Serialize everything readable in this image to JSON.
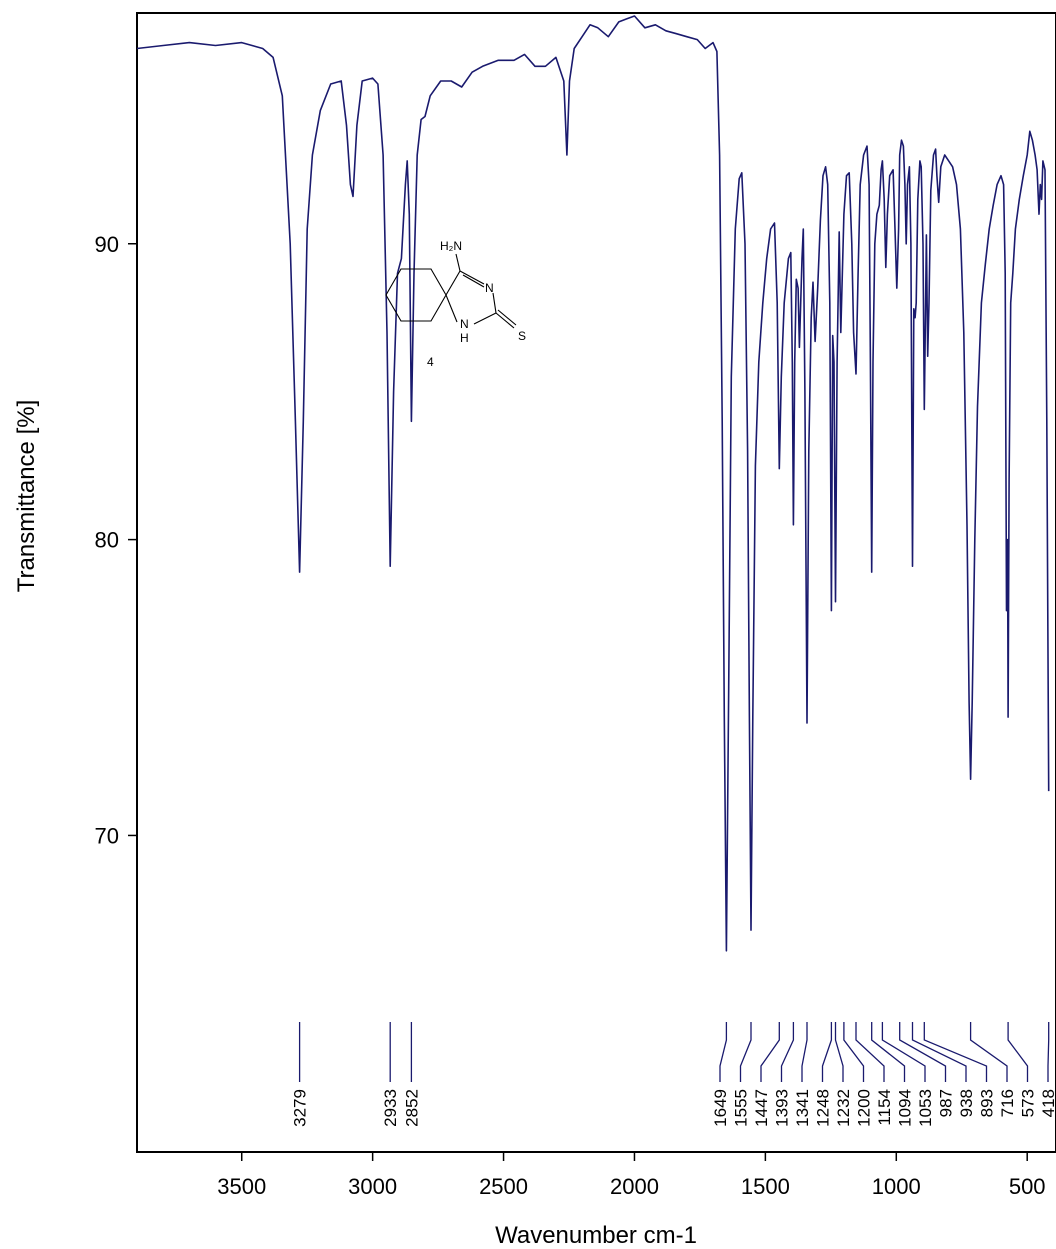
{
  "chart_data": {
    "type": "line",
    "xlabel": "Wavenumber cm-1",
    "ylabel": "Transmittance [%]",
    "xlim": [
      3900,
      390
    ],
    "ylim": [
      59.3,
      97.8
    ],
    "x_reversed": true,
    "x_ticks": [
      3500,
      3000,
      2500,
      2000,
      1500,
      1000,
      500
    ],
    "y_ticks": [
      70,
      80,
      90
    ],
    "grid": false,
    "series": [
      {
        "color": "#1a1a6e",
        "points": [
          [
            3900,
            96.6
          ],
          [
            3800,
            96.7
          ],
          [
            3700,
            96.8
          ],
          [
            3600,
            96.7
          ],
          [
            3500,
            96.8
          ],
          [
            3420,
            96.6
          ],
          [
            3380,
            96.3
          ],
          [
            3345,
            95.0
          ],
          [
            3315,
            90.0
          ],
          [
            3295,
            84.0
          ],
          [
            3279,
            78.9
          ],
          [
            3265,
            84.0
          ],
          [
            3250,
            90.5
          ],
          [
            3230,
            93.0
          ],
          [
            3200,
            94.5
          ],
          [
            3160,
            95.4
          ],
          [
            3120,
            95.5
          ],
          [
            3100,
            94.0
          ],
          [
            3085,
            92.0
          ],
          [
            3075,
            91.6
          ],
          [
            3060,
            94.0
          ],
          [
            3040,
            95.5
          ],
          [
            3000,
            95.6
          ],
          [
            2980,
            95.4
          ],
          [
            2960,
            93.0
          ],
          [
            2945,
            87.0
          ],
          [
            2933,
            79.1
          ],
          [
            2920,
            85.0
          ],
          [
            2905,
            89.0
          ],
          [
            2890,
            89.5
          ],
          [
            2875,
            92.0
          ],
          [
            2868,
            92.8
          ],
          [
            2860,
            91.0
          ],
          [
            2852,
            84.0
          ],
          [
            2842,
            89.0
          ],
          [
            2830,
            93.0
          ],
          [
            2815,
            94.2
          ],
          [
            2800,
            94.3
          ],
          [
            2780,
            95.0
          ],
          [
            2740,
            95.5
          ],
          [
            2700,
            95.5
          ],
          [
            2660,
            95.3
          ],
          [
            2620,
            95.8
          ],
          [
            2580,
            96.0
          ],
          [
            2520,
            96.2
          ],
          [
            2460,
            96.2
          ],
          [
            2420,
            96.4
          ],
          [
            2380,
            96.0
          ],
          [
            2340,
            96.0
          ],
          [
            2300,
            96.3
          ],
          [
            2270,
            95.5
          ],
          [
            2258,
            93.0
          ],
          [
            2248,
            95.5
          ],
          [
            2230,
            96.6
          ],
          [
            2200,
            97.0
          ],
          [
            2170,
            97.4
          ],
          [
            2140,
            97.3
          ],
          [
            2100,
            97.0
          ],
          [
            2060,
            97.5
          ],
          [
            2030,
            97.6
          ],
          [
            2000,
            97.7
          ],
          [
            1960,
            97.3
          ],
          [
            1920,
            97.4
          ],
          [
            1880,
            97.2
          ],
          [
            1840,
            97.1
          ],
          [
            1800,
            97.0
          ],
          [
            1760,
            96.9
          ],
          [
            1730,
            96.6
          ],
          [
            1700,
            96.8
          ],
          [
            1685,
            96.5
          ],
          [
            1675,
            93.0
          ],
          [
            1665,
            84.0
          ],
          [
            1657,
            74.0
          ],
          [
            1649,
            66.1
          ],
          [
            1640,
            75.0
          ],
          [
            1630,
            85.5
          ],
          [
            1615,
            90.5
          ],
          [
            1600,
            92.2
          ],
          [
            1590,
            92.4
          ],
          [
            1578,
            90.0
          ],
          [
            1568,
            83.0
          ],
          [
            1561,
            74.0
          ],
          [
            1555,
            66.8
          ],
          [
            1548,
            74.0
          ],
          [
            1538,
            82.5
          ],
          [
            1525,
            86.0
          ],
          [
            1510,
            88.0
          ],
          [
            1495,
            89.5
          ],
          [
            1480,
            90.5
          ],
          [
            1465,
            90.7
          ],
          [
            1455,
            88.0
          ],
          [
            1447,
            82.4
          ],
          [
            1439,
            85.5
          ],
          [
            1428,
            88.0
          ],
          [
            1412,
            89.5
          ],
          [
            1403,
            89.7
          ],
          [
            1397,
            86.0
          ],
          [
            1393,
            80.5
          ],
          [
            1388,
            86.0
          ],
          [
            1382,
            88.8
          ],
          [
            1375,
            88.5
          ],
          [
            1370,
            86.5
          ],
          [
            1360,
            89.5
          ],
          [
            1355,
            90.5
          ],
          [
            1349,
            85.0
          ],
          [
            1341,
            73.8
          ],
          [
            1334,
            83.0
          ],
          [
            1325,
            87.5
          ],
          [
            1318,
            88.7
          ],
          [
            1310,
            86.7
          ],
          [
            1300,
            88.5
          ],
          [
            1290,
            90.8
          ],
          [
            1280,
            92.3
          ],
          [
            1270,
            92.6
          ],
          [
            1262,
            92.0
          ],
          [
            1254,
            88.0
          ],
          [
            1248,
            77.6
          ],
          [
            1243,
            86.9
          ],
          [
            1238,
            86.0
          ],
          [
            1232,
            77.9
          ],
          [
            1226,
            86.0
          ],
          [
            1218,
            90.4
          ],
          [
            1212,
            87.0
          ],
          [
            1200,
            91.0
          ],
          [
            1190,
            92.3
          ],
          [
            1180,
            92.4
          ],
          [
            1170,
            90.0
          ],
          [
            1163,
            87.0
          ],
          [
            1154,
            85.6
          ],
          [
            1146,
            89.0
          ],
          [
            1138,
            92.0
          ],
          [
            1125,
            93.0
          ],
          [
            1112,
            93.3
          ],
          [
            1104,
            92.0
          ],
          [
            1099,
            86.0
          ],
          [
            1094,
            78.9
          ],
          [
            1089,
            86.0
          ],
          [
            1082,
            90.0
          ],
          [
            1074,
            91.0
          ],
          [
            1065,
            91.3
          ],
          [
            1058,
            92.5
          ],
          [
            1053,
            92.8
          ],
          [
            1046,
            91.5
          ],
          [
            1040,
            89.2
          ],
          [
            1034,
            91.0
          ],
          [
            1025,
            92.3
          ],
          [
            1012,
            92.5
          ],
          [
            1005,
            90.5
          ],
          [
            998,
            88.5
          ],
          [
            991,
            90.5
          ],
          [
            987,
            93.0
          ],
          [
            980,
            93.5
          ],
          [
            973,
            93.3
          ],
          [
            967,
            92.0
          ],
          [
            962,
            90.0
          ],
          [
            957,
            92.0
          ],
          [
            950,
            92.6
          ],
          [
            944,
            90.0
          ],
          [
            938,
            79.1
          ],
          [
            933,
            87.8
          ],
          [
            928,
            87.5
          ],
          [
            924,
            88.0
          ],
          [
            918,
            91.5
          ],
          [
            910,
            92.8
          ],
          [
            905,
            92.6
          ],
          [
            898,
            90.0
          ],
          [
            893,
            84.4
          ],
          [
            888,
            88.0
          ],
          [
            885,
            90.3
          ],
          [
            880,
            86.2
          ],
          [
            875,
            88.0
          ],
          [
            868,
            91.8
          ],
          [
            858,
            93.0
          ],
          [
            850,
            93.2
          ],
          [
            845,
            92.3
          ],
          [
            838,
            91.4
          ],
          [
            830,
            92.6
          ],
          [
            815,
            93.0
          ],
          [
            800,
            92.8
          ],
          [
            785,
            92.6
          ],
          [
            770,
            92.0
          ],
          [
            755,
            90.5
          ],
          [
            742,
            87.0
          ],
          [
            730,
            80.5
          ],
          [
            722,
            74.5
          ],
          [
            716,
            71.9
          ],
          [
            710,
            74.5
          ],
          [
            700,
            80.0
          ],
          [
            690,
            84.5
          ],
          [
            675,
            88.0
          ],
          [
            660,
            89.3
          ],
          [
            645,
            90.5
          ],
          [
            630,
            91.3
          ],
          [
            615,
            92.0
          ],
          [
            600,
            92.3
          ],
          [
            590,
            92.0
          ],
          [
            584,
            89.0
          ],
          [
            579,
            77.6
          ],
          [
            575,
            80.0
          ],
          [
            573,
            74.0
          ],
          [
            569,
            82.0
          ],
          [
            563,
            88.0
          ],
          [
            555,
            89.0
          ],
          [
            545,
            90.5
          ],
          [
            530,
            91.5
          ],
          [
            515,
            92.3
          ],
          [
            500,
            93.0
          ],
          [
            490,
            93.8
          ],
          [
            480,
            93.5
          ],
          [
            470,
            93.0
          ],
          [
            462,
            92.5
          ],
          [
            455,
            91.0
          ],
          [
            450,
            92.0
          ],
          [
            445,
            91.5
          ],
          [
            440,
            92.8
          ],
          [
            432,
            92.5
          ],
          [
            425,
            84.0
          ],
          [
            418,
            71.5
          ]
        ]
      }
    ],
    "peak_labels": [
      "3279",
      "2933",
      "2852",
      "1649",
      "1555",
      "1447",
      "1393",
      "1341",
      "1248",
      "1232",
      "1200",
      "1154",
      "1094",
      "1053",
      "987",
      "938",
      "893",
      "716",
      "573",
      "418"
    ],
    "annotations": {
      "compound_number": "4",
      "structure_labels": {
        "amine": "H₂N",
        "ring_n": "N",
        "ring_nh": "N",
        "ring_h": "H",
        "thione_s": "S"
      }
    }
  }
}
